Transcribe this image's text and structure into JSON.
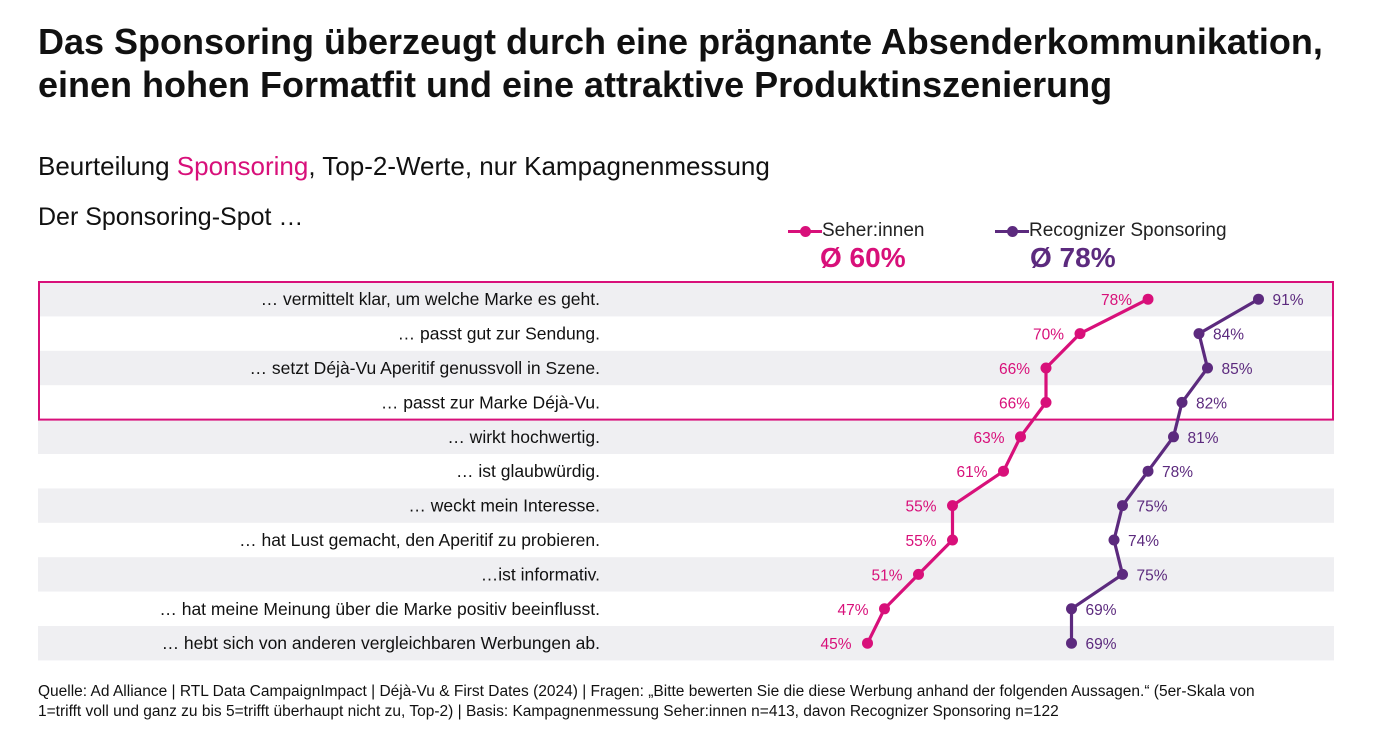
{
  "title_lines": [
    "Das Sponsoring überzeugt durch eine prägnante Absenderkommunikation,",
    "einen hohen Formatfit und eine attraktive Produktinszenierung"
  ],
  "subtitle": {
    "prefix": "Beurteilung ",
    "highlight": "Sponsoring",
    "suffix": ", Top-2-Werte, nur Kampagnenmessung"
  },
  "lead": "Der Sponsoring-Spot …",
  "legend": [
    {
      "name": "Seher:innen",
      "avg": "Ø 60%",
      "color": "#d8107a"
    },
    {
      "name": "Recognizer Sponsoring",
      "avg": "Ø 78%",
      "color": "#5c2a7e"
    }
  ],
  "chart_data": {
    "type": "line",
    "orientation": "horizontal-dot-plot",
    "categories": [
      "… vermittelt klar, um welche Marke es geht.",
      "… passt gut zur Sendung.",
      "… setzt Déjà-Vu Aperitif genussvoll in Szene.",
      "… passt zur Marke Déjà-Vu.",
      "… wirkt hochwertig.",
      "… ist glaubwürdig.",
      "… weckt mein Interesse.",
      "… hat Lust gemacht, den Aperitif zu probieren.",
      "…ist informativ.",
      "… hat meine Meinung über die Marke positiv beeinflusst.",
      "… hebt sich von anderen vergleichbaren Werbungen ab."
    ],
    "series": [
      {
        "name": "Seher:innen",
        "color": "#d8107a",
        "values": [
          78,
          70,
          66,
          66,
          63,
          61,
          55,
          55,
          51,
          47,
          45
        ],
        "labels": [
          "78%",
          "70%",
          "66%",
          "66%",
          "63%",
          "61%",
          "55%",
          "55%",
          "51%",
          "47%",
          "45%"
        ]
      },
      {
        "name": "Recognizer Sponsoring",
        "color": "#5c2a7e",
        "values": [
          91,
          84,
          85,
          82,
          81,
          78,
          75,
          74,
          75,
          69,
          69
        ],
        "labels": [
          "91%",
          "84%",
          "85%",
          "82%",
          "81%",
          "78%",
          "75%",
          "74%",
          "75%",
          "69%",
          "69%"
        ]
      }
    ],
    "highlighted_rows": [
      0,
      1,
      2,
      3
    ],
    "highlight_color": "#d8107a",
    "row_stripe_color": "#efeff2"
  },
  "source_lines": [
    "Quelle: Ad Alliance | RTL Data CampaignImpact | Déjà-Vu & First Dates (2024) | Fragen: „Bitte bewerten Sie die diese Werbung anhand der folgenden Aussagen.“ (5er-Skala von",
    "1=trifft voll und ganz zu bis 5=trifft überhaupt nicht zu, Top-2) | Basis:  Kampagnenmessung Seher:innen n=413, davon Recognizer Sponsoring n=122"
  ]
}
